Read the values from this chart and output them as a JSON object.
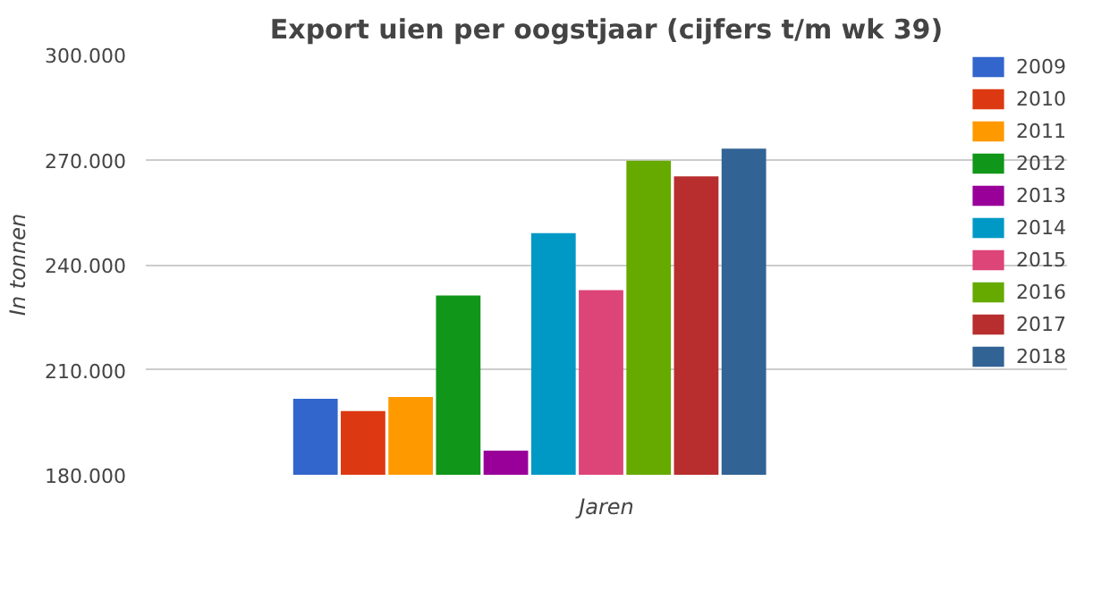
{
  "chart_data": {
    "type": "bar",
    "title": "Export uien per oogstjaar (cijfers t/m wk 39)",
    "xlabel": "Jaren",
    "ylabel": "In tonnen",
    "categories": [
      null
    ],
    "series": [
      {
        "name": "2009",
        "color": "#3366cc",
        "values": [
          201700
        ]
      },
      {
        "name": "2010",
        "color": "#dc3912",
        "values": [
          198200
        ]
      },
      {
        "name": "2011",
        "color": "#ff9900",
        "values": [
          202200
        ]
      },
      {
        "name": "2012",
        "color": "#109618",
        "values": [
          231200
        ]
      },
      {
        "name": "2013",
        "color": "#990099",
        "values": [
          186900
        ]
      },
      {
        "name": "2014",
        "color": "#0099c6",
        "values": [
          249000
        ]
      },
      {
        "name": "2015",
        "color": "#dd4477",
        "values": [
          232700
        ]
      },
      {
        "name": "2016",
        "color": "#66aa00",
        "values": [
          269700
        ]
      },
      {
        "name": "2017",
        "color": "#b82e2e",
        "values": [
          265200
        ]
      },
      {
        "name": "2018",
        "color": "#316395",
        "values": [
          273100
        ]
      }
    ],
    "ylim": [
      180000,
      300000
    ],
    "yticks": [
      {
        "value": 180000,
        "label": "180.000"
      },
      {
        "value": 210000,
        "label": "210.000"
      },
      {
        "value": 240000,
        "label": "240.000"
      },
      {
        "value": 270000,
        "label": "270.000"
      },
      {
        "value": 300000,
        "label": "300.000"
      }
    ],
    "grid": "y",
    "legend": "right"
  }
}
